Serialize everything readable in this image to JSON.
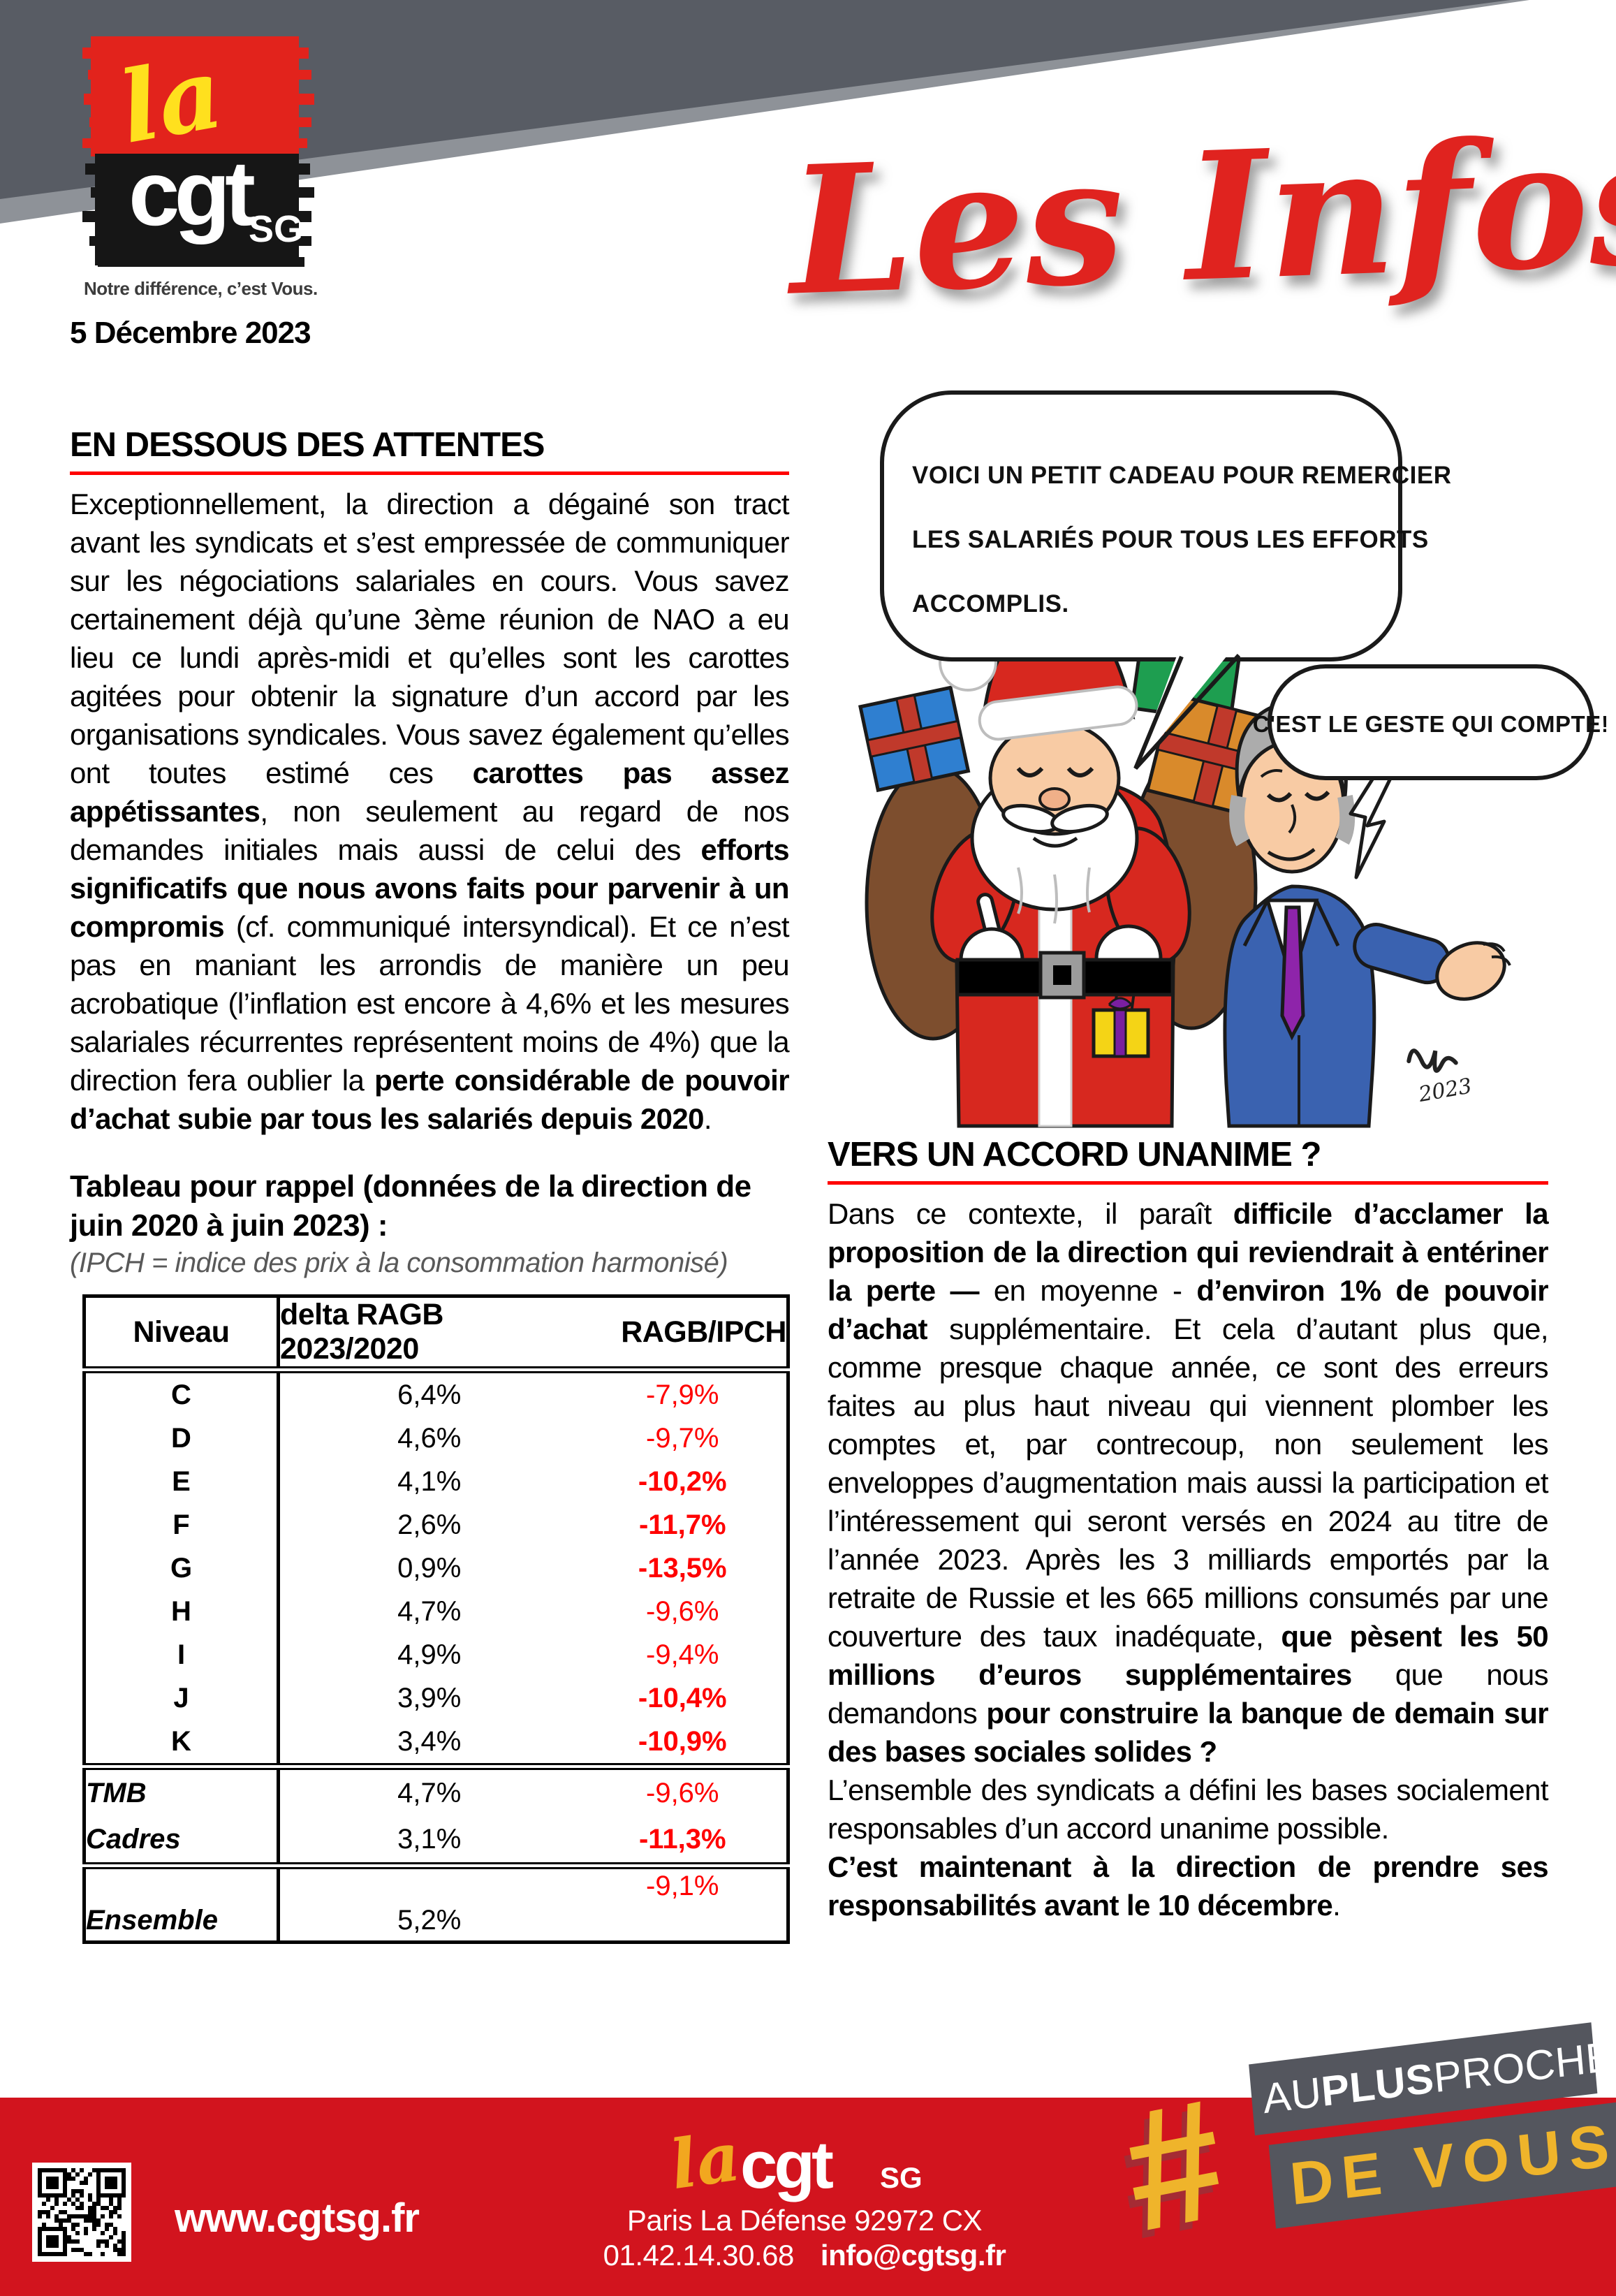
{
  "header": {
    "brand": {
      "la": "la",
      "cgt": "cgt",
      "sg": "SG"
    },
    "tagline": "Notre différence, c’est Vous.",
    "date": "5 Décembre 2023",
    "masthead_title": "Les Infos"
  },
  "left_article": {
    "title": "EN DESSOUS DES ATTENTES",
    "runs": [
      {
        "t": "Exceptionnellement, la direction a dégainé son tract avant les syndicats et s’est empressée de communiquer sur les négociations salariales en cours. Vous savez certainement déjà qu’une 3ème réunion de NAO a eu lieu ce lundi après-midi et qu’elles sont les carottes agitées pour obtenir la signature d’un accord par les organisations syndicales. Vous savez également qu’elles ont toutes estimé ces "
      },
      {
        "t": "carottes pas assez appétissantes",
        "b": true
      },
      {
        "t": ", non seulement au regard de nos demandes initiales mais aussi de celui des "
      },
      {
        "t": "efforts significatifs que nous avons faits pour parvenir à un compromis",
        "b": true
      },
      {
        "t": " (cf. communiqué intersyndical). Et ce n’est pas en maniant les arrondis de manière un peu acrobatique (l’inflation est encore à 4,6% et les mesures salariales récurrentes représentent moins de 4%) que la direction fera oublier la "
      },
      {
        "t": "perte considérable de pouvoir d’achat subie par tous les salariés depuis 2020",
        "b": true
      },
      {
        "t": "."
      }
    ],
    "table_heading": "Tableau pour rappel (données de la direction de juin 2020 à juin 2023) :",
    "table_note": "(IPCH = indice des prix à la consommation harmonisé)"
  },
  "table": {
    "headers": [
      "Niveau",
      "delta RAGB 2023/2020",
      "RAGB/IPCH"
    ],
    "level_rows": [
      {
        "niveau": "C",
        "delta": "6,4%",
        "ratio": "-7,9%",
        "ratio_bold": false
      },
      {
        "niveau": "D",
        "delta": "4,6%",
        "ratio": "-9,7%",
        "ratio_bold": false
      },
      {
        "niveau": "E",
        "delta": "4,1%",
        "ratio": "-10,2%",
        "ratio_bold": true
      },
      {
        "niveau": "F",
        "delta": "2,6%",
        "ratio": "-11,7%",
        "ratio_bold": true
      },
      {
        "niveau": "G",
        "delta": "0,9%",
        "ratio": "-13,5%",
        "ratio_bold": true
      },
      {
        "niveau": "H",
        "delta": "4,7%",
        "ratio": "-9,6%",
        "ratio_bold": false
      },
      {
        "niveau": "I",
        "delta": "4,9%",
        "ratio": "-9,4%",
        "ratio_bold": false
      },
      {
        "niveau": "J",
        "delta": "3,9%",
        "ratio": "-10,4%",
        "ratio_bold": true
      },
      {
        "niveau": "K",
        "delta": "3,4%",
        "ratio": "-10,9%",
        "ratio_bold": true
      }
    ],
    "group_rows": [
      {
        "niveau": "TMB",
        "delta": "4,7%",
        "ratio": "-9,6%",
        "ratio_bold": false
      },
      {
        "niveau": "Cadres",
        "delta": "3,1%",
        "ratio": "-11,3%",
        "ratio_bold": true
      }
    ],
    "ensemble": {
      "niveau": "Ensemble",
      "delta": "5,2%",
      "ratio": "-9,1%"
    }
  },
  "cartoon": {
    "bubble1_lines": [
      "VOICI UN PETIT CADEAU POUR REMERCIER",
      "LES SALARIÉS POUR TOUS LES EFFORTS",
      "ACCOMPLIS."
    ],
    "bubble2": "C'EST LE GESTE QUI COMPTE!",
    "signature_year": "2023"
  },
  "right_article": {
    "title": "VERS UN ACCORD UNANIME ?",
    "runs": [
      {
        "t": "Dans ce contexte, il paraît "
      },
      {
        "t": "difficile d’acclamer la proposition de la direction qui reviendrait à entériner la perte —",
        "b": true
      },
      {
        "t": " en moyenne - "
      },
      {
        "t": "d’environ 1% de pouvoir d’achat",
        "b": true
      },
      {
        "t": " supplémentaire. Et cela d’autant plus que, comme presque chaque année, ce sont des erreurs faites au plus haut niveau qui viennent plomber les comptes et, par contrecoup, non seulement les enveloppes d’augmentation mais aussi la participation et l’intéressement qui seront versés en 2024 au titre de l’année 2023. Après les 3 milliards emportés par la retraite de Russie et les 665 millions consumés par une couverture des taux inadéquate, "
      },
      {
        "t": "que pèsent les 50 millions d’euros supplémentaires",
        "b": true
      },
      {
        "t": " que nous demandons "
      },
      {
        "t": "pour construire la banque de demain sur des bases sociales solides ?",
        "b": true
      },
      {
        "t": "\nL’ensemble des syndicats a défini les bases socialement responsables d’un accord unanime possible.\n"
      },
      {
        "t": "C’est maintenant à la direction de prendre ses responsabilités avant le 10 décembre",
        "b": true
      },
      {
        "t": "."
      }
    ]
  },
  "footer": {
    "website": "www.cgtsg.fr",
    "brand": {
      "la": "la",
      "cgt": "cgt",
      "sg": "SG"
    },
    "address": "Paris La Défense 92972 CX",
    "phone": "01.42.14.30.68",
    "email": "info@cgtsg.fr",
    "badge": {
      "hash": "#",
      "au": "AU",
      "plus": "PLUS",
      "proche": "PROCHE",
      "line2": "DE VOUS"
    }
  },
  "colors": {
    "header_gray": "#585c64",
    "header_edge_gray": "#8e9298",
    "brand_paint_red": "#e2231c",
    "brand_paint_black": "#161616",
    "logo_yellow": "#ffe01e",
    "masthead_red": "#e0231f",
    "rule_red": "#ff0000",
    "table_value_red": "#ff0000",
    "footer_red": "#d2141e",
    "badge_gray": "#54565e",
    "badge_yellow": "#efb42b",
    "santa_red": "#d7281f",
    "suit_blue": "#3a62b0",
    "tie_purple": "#8e24aa"
  }
}
